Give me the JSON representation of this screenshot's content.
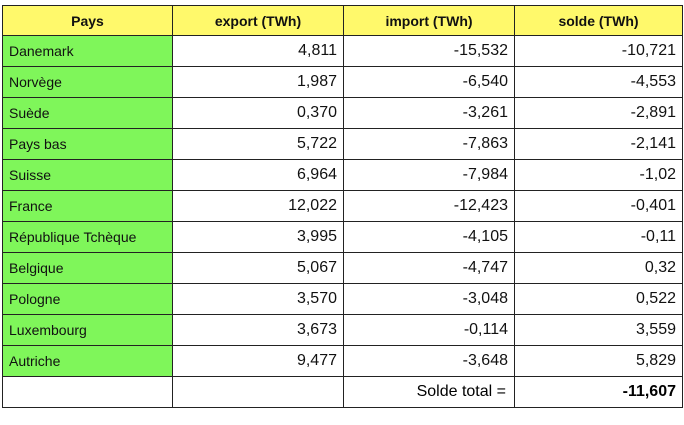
{
  "table": {
    "headers": [
      "Pays",
      "export (TWh)",
      "import (TWh)",
      "solde (TWh)"
    ],
    "rows": [
      {
        "country": "Danemark",
        "export": "4,811",
        "import": "-15,532",
        "solde": "-10,721"
      },
      {
        "country": "Norvège",
        "export": "1,987",
        "import": "-6,540",
        "solde": "-4,553"
      },
      {
        "country": "Suède",
        "export": "0,370",
        "import": "-3,261",
        "solde": "-2,891"
      },
      {
        "country": "Pays bas",
        "export": "5,722",
        "import": "-7,863",
        "solde": "-2,141"
      },
      {
        "country": "Suisse",
        "export": "6,964",
        "import": "-7,984",
        "solde": "-1,02"
      },
      {
        "country": "France",
        "export": "12,022",
        "import": "-12,423",
        "solde": "-0,401"
      },
      {
        "country": "République Tchèque",
        "export": "3,995",
        "import": "-4,105",
        "solde": "-0,11"
      },
      {
        "country": "Belgique",
        "export": "5,067",
        "import": "-4,747",
        "solde": "0,32"
      },
      {
        "country": "Pologne",
        "export": "3,570",
        "import": "-3,048",
        "solde": "0,522"
      },
      {
        "country": "Luxembourg",
        "export": "3,673",
        "import": "-0,114",
        "solde": "3,559"
      },
      {
        "country": "Autriche",
        "export": "9,477",
        "import": "-3,648",
        "solde": "5,829"
      }
    ],
    "total": {
      "label": "Solde total =",
      "value": "-11,607"
    }
  },
  "colors": {
    "header_bg": "#fff96b",
    "country_bg": "#7ff65a"
  }
}
